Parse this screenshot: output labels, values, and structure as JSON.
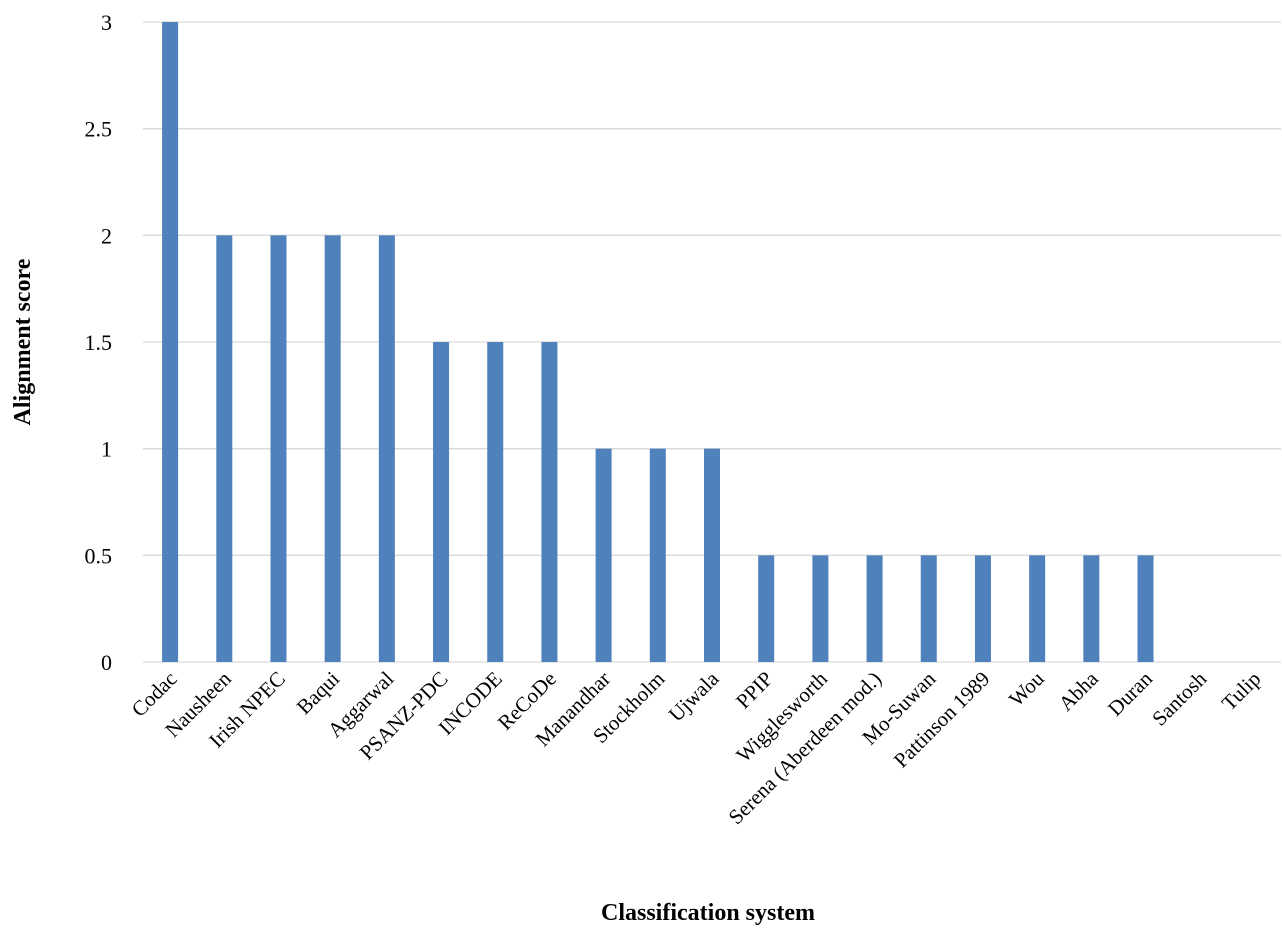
{
  "chart_data": {
    "type": "bar",
    "title": "",
    "xlabel": "Classification system",
    "ylabel": "Alignment score",
    "ylim": [
      0,
      3
    ],
    "yticks": [
      "0",
      "0.5",
      "1",
      "1.5",
      "2",
      "2.5",
      "3"
    ],
    "grid": true,
    "legend": "none",
    "categories": [
      "Codac",
      "Nausheen",
      "Irish NPEC",
      "Baqui",
      "Aggarwal",
      "PSANZ-PDC",
      "INCODE",
      "ReCoDe",
      "Manandhar",
      "Stockholm",
      "Ujwala",
      "PPIP",
      "Wigglesworth",
      "Serena (Aberdeen mod.)",
      "Mo-Suwan",
      "Pattinson 1989",
      "Wou",
      "Abha",
      "Duran",
      "Santosh",
      "Tulip"
    ],
    "values": [
      3,
      2,
      2,
      2,
      2,
      1.5,
      1.5,
      1.5,
      1,
      1,
      1,
      0.5,
      0.5,
      0.5,
      0.5,
      0.5,
      0.5,
      0.5,
      0.5,
      0,
      0
    ],
    "colors": {
      "bar": "#4f81bd"
    }
  }
}
